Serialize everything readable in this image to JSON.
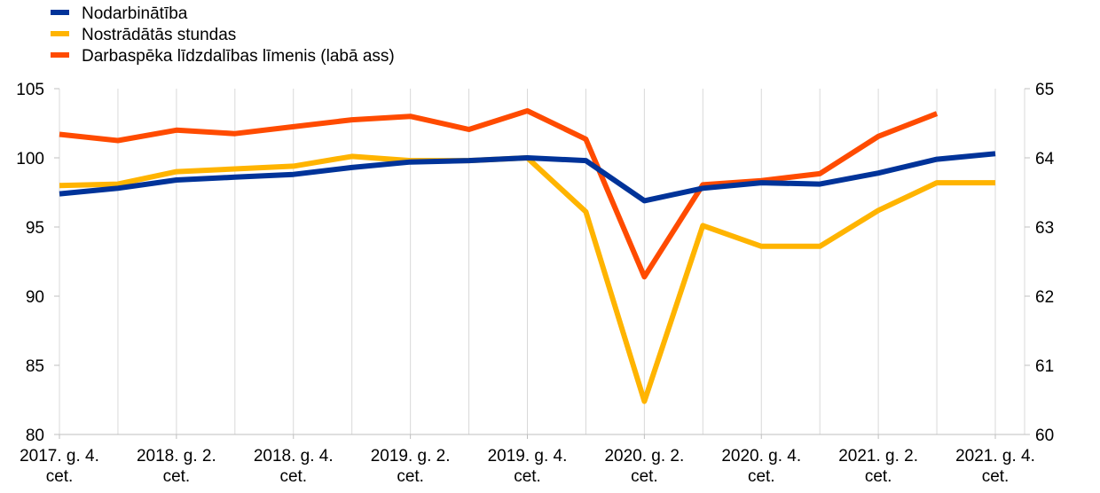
{
  "chart_data": {
    "type": "line",
    "x": [
      "2017. g. 4. cet.",
      "2018. g. 1. cet.",
      "2018. g. 2. cet.",
      "2018. g. 3. cet.",
      "2018. g. 4. cet.",
      "2019. g. 1. cet.",
      "2019. g. 2. cet.",
      "2019. g. 3. cet.",
      "2019. g. 4. cet.",
      "2020. g. 1. cet.",
      "2020. g. 2. cet.",
      "2020. g. 3. cet.",
      "2020. g. 4. cet.",
      "2021. g. 1. cet.",
      "2021. g. 2. cet.",
      "2021. g. 3. cet.",
      "2021. g. 4. cet."
    ],
    "x_tick_labels": [
      {
        "index": 0,
        "line1": "2017. g. 4.",
        "line2": "cet."
      },
      {
        "index": 2,
        "line1": "2018. g. 2.",
        "line2": "cet."
      },
      {
        "index": 4,
        "line1": "2018. g. 4.",
        "line2": "cet."
      },
      {
        "index": 6,
        "line1": "2019. g. 2.",
        "line2": "cet."
      },
      {
        "index": 8,
        "line1": "2019. g. 4.",
        "line2": "cet."
      },
      {
        "index": 10,
        "line1": "2020. g. 2.",
        "line2": "cet."
      },
      {
        "index": 12,
        "line1": "2020. g. 4.",
        "line2": "cet."
      },
      {
        "index": 14,
        "line1": "2021. g. 2.",
        "line2": "cet."
      },
      {
        "index": 16,
        "line1": "2021. g. 4.",
        "line2": "cet."
      }
    ],
    "y_left": {
      "min": 80,
      "max": 105,
      "ticks": [
        80,
        85,
        90,
        95,
        100,
        105
      ]
    },
    "y_right": {
      "min": 60,
      "max": 65,
      "ticks": [
        60,
        61,
        62,
        63,
        64,
        65
      ]
    },
    "grid": "vertical",
    "legend_position": "top-left",
    "series": [
      {
        "name": "Nodarbinātība",
        "color": "#003399",
        "axis": "left",
        "values": [
          97.4,
          97.8,
          98.4,
          98.6,
          98.8,
          99.3,
          99.7,
          99.8,
          100.0,
          99.8,
          96.9,
          97.8,
          98.2,
          98.1,
          98.9,
          99.9,
          100.3
        ]
      },
      {
        "name": "Nostrādātās stundas",
        "color": "#ffb400",
        "axis": "left",
        "values": [
          98.0,
          98.1,
          99.0,
          99.2,
          99.4,
          100.1,
          99.8,
          99.8,
          100.0,
          96.1,
          82.4,
          95.1,
          93.6,
          93.6,
          96.2,
          98.2,
          98.2
        ]
      },
      {
        "name": "Darbaspēka līdzdalības līmenis (labā ass)",
        "color": "#ff4b00",
        "axis": "right",
        "values": [
          64.34,
          64.25,
          64.4,
          64.35,
          64.45,
          64.55,
          64.6,
          64.41,
          64.68,
          64.27,
          62.28,
          63.61,
          63.67,
          63.77,
          64.31,
          64.64,
          null
        ]
      }
    ]
  }
}
